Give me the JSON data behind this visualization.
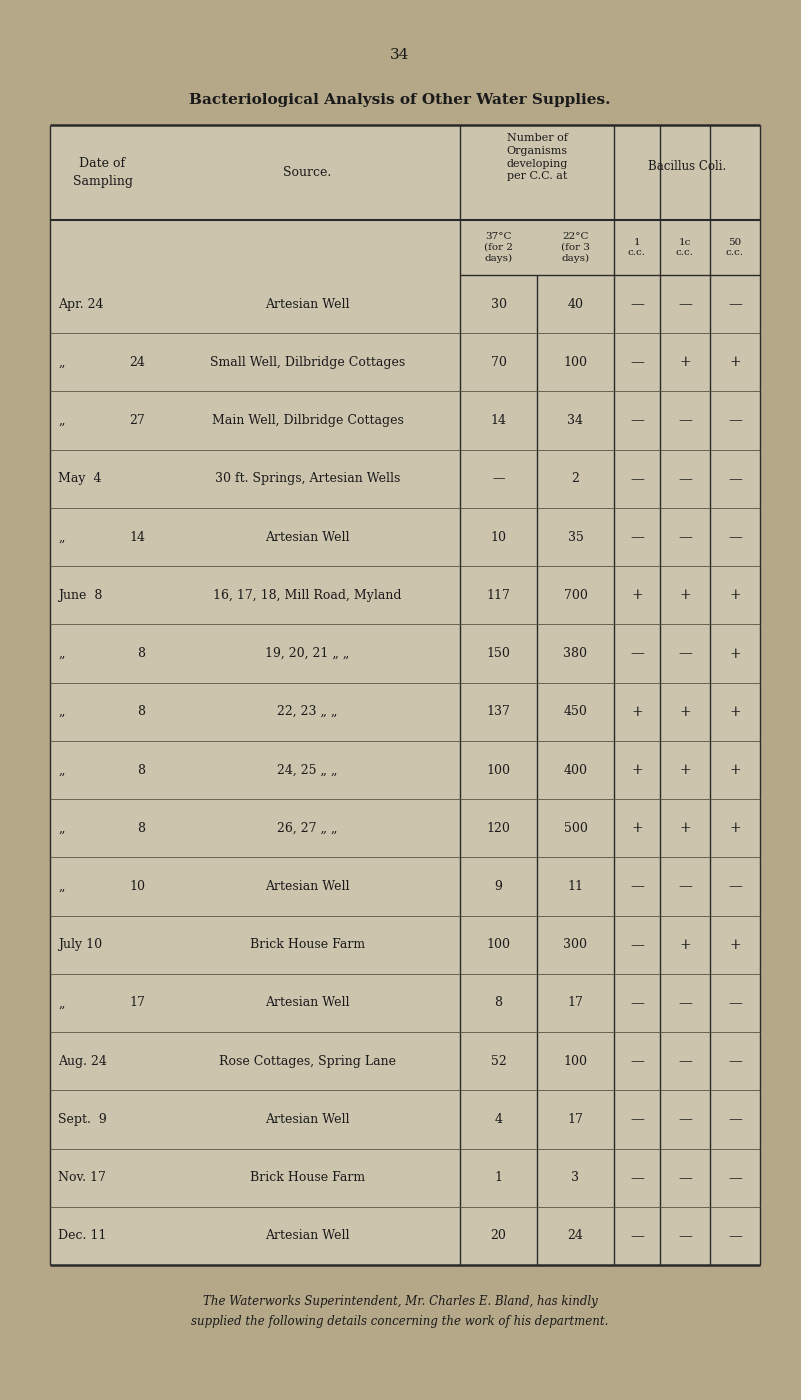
{
  "page_number": "34",
  "title": "Bacteriological Analysis of Other Water Supplies.",
  "bg_color": "#b5a888",
  "table_bg": "#cdc4ae",
  "text_color": "#1a1a1a",
  "line_color": "#2a2a2a",
  "rows": [
    {
      "date": "Apr. 24",
      "source": "Artesian Well",
      "t37": "30",
      "t22": "40",
      "c1": "—",
      "c10": "—",
      "c50": "—"
    },
    {
      "„": true,
      "day": "24",
      "source": "Small Well, Dilbridge Cottages",
      "t37": "70",
      "t22": "100",
      "c1": "—",
      "c10": "+",
      "c50": "+"
    },
    {
      "„": true,
      "day": "27",
      "source": "Main Well, Dilbridge Cottages",
      "t37": "14",
      "t22": "34",
      "c1": "—",
      "c10": "—",
      "c50": "—"
    },
    {
      "date": "May  4",
      "source": "30 ft. Springs, Artesian Wells",
      "t37": "—",
      "t22": "2",
      "c1": "—",
      "c10": "—",
      "c50": "—"
    },
    {
      "„": true,
      "day": "14",
      "source": "Artesian Well",
      "t37": "10",
      "t22": "35",
      "c1": "—",
      "c10": "—",
      "c50": "—"
    },
    {
      "date": "June  8",
      "source": "16, 17, 18, Mill Road, Myland",
      "t37": "117",
      "t22": "700",
      "c1": "+",
      "c10": "+",
      "c50": "+"
    },
    {
      "„": true,
      "day": "8",
      "source": "19, 20, 21 „ „",
      "t37": "150",
      "t22": "380",
      "c1": "—",
      "c10": "—",
      "c50": "+"
    },
    {
      "„": true,
      "day": "8",
      "source": "22, 23 „ „",
      "t37": "137",
      "t22": "450",
      "c1": "+",
      "c10": "+",
      "c50": "+"
    },
    {
      "„": true,
      "day": "8",
      "source": "24, 25 „ „",
      "t37": "100",
      "t22": "400",
      "c1": "+",
      "c10": "+",
      "c50": "+"
    },
    {
      "„": true,
      "day": "8",
      "source": "26, 27 „ „",
      "t37": "120",
      "t22": "500",
      "c1": "+",
      "c10": "+",
      "c50": "+"
    },
    {
      "„": true,
      "day": "10",
      "source": "Artesian Well",
      "t37": "9",
      "t22": "11",
      "c1": "—",
      "c10": "—",
      "c50": "—"
    },
    {
      "date": "July 10",
      "source": "Brick House Farm",
      "t37": "100",
      "t22": "300",
      "c1": "—",
      "c10": "+",
      "c50": "+"
    },
    {
      "„": true,
      "day": "17",
      "source": "Artesian Well",
      "t37": "8",
      "t22": "17",
      "c1": "—",
      "c10": "—",
      "c50": "—"
    },
    {
      "date": "Aug. 24",
      "source": "Rose Cottages, Spring Lane",
      "t37": "52",
      "t22": "100",
      "c1": "—",
      "c10": "—",
      "c50": "—"
    },
    {
      "date": "Sept.  9",
      "source": "Artesian Well",
      "t37": "4",
      "t22": "17",
      "c1": "—",
      "c10": "—",
      "c50": "—"
    },
    {
      "date": "Nov. 17",
      "source": "Brick House Farm",
      "t37": "1",
      "t22": "3",
      "c1": "—",
      "c10": "—",
      "c50": "—"
    },
    {
      "date": "Dec. 11",
      "source": "Artesian Well",
      "t37": "20",
      "t22": "24",
      "c1": "—",
      "c10": "—",
      "c50": "—"
    }
  ],
  "footer_line1": "The Waterworks Superintendent, Mr. Charles E. Bland, has kindly",
  "footer_line2": "supplied the following details concerning the work of his department."
}
